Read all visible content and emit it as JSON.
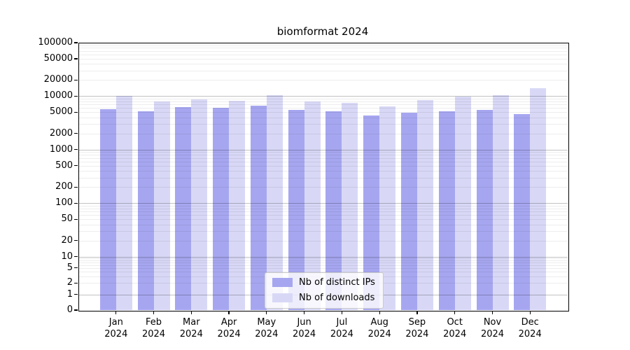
{
  "chart_data": {
    "type": "bar",
    "title": "biomformat 2024",
    "categories": [
      "Jan",
      "Feb",
      "Mar",
      "Apr",
      "May",
      "Jun",
      "Jul",
      "Aug",
      "Sep",
      "Oct",
      "Nov",
      "Dec"
    ],
    "category_year": "2024",
    "series": [
      {
        "name": "Nb of distinct IPs",
        "color": "#a6a6f0",
        "values": [
          5800,
          5300,
          6300,
          6000,
          6700,
          5600,
          5200,
          4300,
          4900,
          5200,
          5500,
          4700
        ]
      },
      {
        "name": "Nb of downloads",
        "color": "#d8d8f6",
        "values": [
          10000,
          8000,
          8600,
          8200,
          10400,
          7900,
          7400,
          6500,
          8500,
          9900,
          10500,
          14100
        ]
      }
    ],
    "yscale": "symlog",
    "ylim": [
      0,
      100000
    ],
    "yticks": [
      100000,
      50000,
      20000,
      10000,
      5000,
      2000,
      1000,
      500,
      200,
      100,
      50,
      20,
      10,
      5,
      2,
      1,
      0
    ],
    "grid": true,
    "legend_position": "lower center"
  }
}
